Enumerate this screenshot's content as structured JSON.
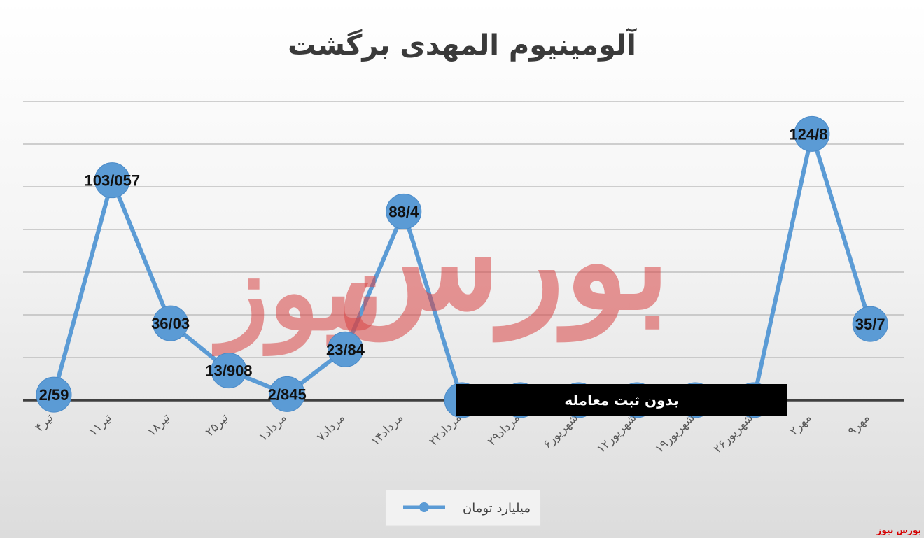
{
  "colors": {
    "series": "#5b9bd5",
    "marker": "#5b9bd5",
    "grid": "#b5b5b5",
    "axis": "#404040",
    "note_bg": "#000000",
    "watermark": "#d94545",
    "brand": "#d40000"
  },
  "watermark": {
    "line1": "بورس",
    "line2": "نیوز"
  },
  "brand_label": "بورس نیوز",
  "note": {
    "label": "بدون ثبت معامله"
  },
  "chart_data": {
    "type": "line",
    "title": "آلومینیوم المهدی برگشت",
    "categories": [
      "۴تیر",
      "۱۱تیر",
      "۱۸تیر",
      "۲۵تیر",
      "۱مرداد",
      "۷مرداد",
      "۱۴مرداد",
      "۲۲مرداد",
      "۲۹مرداد",
      "۶شهریور",
      "۱۲شهریور",
      "۱۹شهریور",
      "۲۶شهریور",
      "۲مهر",
      "۹مهر"
    ],
    "series": [
      {
        "name": "میلیارد تومان",
        "values": [
          2.59,
          103.057,
          36.03,
          13.908,
          2.845,
          23.84,
          88.4,
          0,
          0,
          0,
          0,
          0,
          0,
          124.8,
          35.7
        ],
        "labels": [
          "2/59",
          "103/057",
          "36/03",
          "13/908",
          "2/845",
          "23/84",
          "88/4",
          "",
          "",
          "",
          "",
          "",
          "",
          "124/8",
          "35/7"
        ]
      }
    ],
    "ylim": [
      0,
      140
    ],
    "y_gridline_step": 20,
    "grid": true,
    "legend_position": "bottom",
    "xlabel": "",
    "ylabel": ""
  }
}
